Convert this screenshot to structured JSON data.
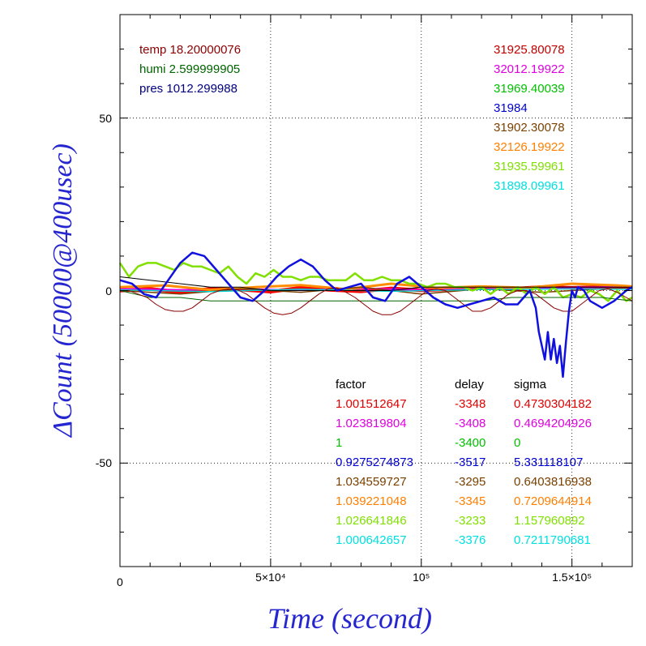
{
  "chart_data": {
    "type": "line",
    "xlabel": "Time (second)",
    "ylabel": "ΔCount (50000@400usec)",
    "xlim": [
      0,
      170000
    ],
    "ylim": [
      -80,
      80
    ],
    "x_ticks": [
      {
        "value": 0,
        "label": "0"
      },
      {
        "value": 50000,
        "label": "5×10⁴"
      },
      {
        "value": 100000,
        "label": "10⁵"
      },
      {
        "value": 150000,
        "label": "1.5×10⁵"
      }
    ],
    "y_ticks": [
      {
        "value": 50,
        "label": "50"
      },
      {
        "value": 0,
        "label": "0"
      },
      {
        "value": -50,
        "label": "-50"
      }
    ],
    "grid": "dotted at major ticks",
    "env_readings": [
      {
        "text": "temp 18.20000076",
        "color": "#8b0000"
      },
      {
        "text": "humi 2.599999905",
        "color": "#006400"
      },
      {
        "text": "pres 1012.299988",
        "color": "#00007f"
      }
    ],
    "channel_means": [
      {
        "text": "31925.80078",
        "color": "#c00000"
      },
      {
        "text": "32012.19922",
        "color": "#e000e0"
      },
      {
        "text": "31969.40039",
        "color": "#00c000"
      },
      {
        "text": "31984",
        "color": "#0000d0"
      },
      {
        "text": "31902.30078",
        "color": "#7a4000"
      },
      {
        "text": "32126.19922",
        "color": "#ff7f00"
      },
      {
        "text": "31935.59961",
        "color": "#80e000"
      },
      {
        "text": "31898.09961",
        "color": "#00e0e0"
      }
    ],
    "table": {
      "headers": [
        "factor",
        "delay",
        "sigma"
      ],
      "rows": [
        {
          "factor": "1.001512647",
          "delay": "-3348",
          "sigma": "0.4730304182",
          "color": "#e00000"
        },
        {
          "factor": "1.023819804",
          "delay": "-3408",
          "sigma": "0.4694204926",
          "color": "#e000e0"
        },
        {
          "factor": "1",
          "delay": "-3400",
          "sigma": "0",
          "color": "#00c000"
        },
        {
          "factor": "0.9275274873",
          "delay": "-3517",
          "sigma": "5.331118107",
          "color": "#0000d0"
        },
        {
          "factor": "1.034559727",
          "delay": "-3295",
          "sigma": "0.6403816938",
          "color": "#7a4000"
        },
        {
          "factor": "1.039221048",
          "delay": "-3345",
          "sigma": "0.7209644914",
          "color": "#ff7f00"
        },
        {
          "factor": "1.026641846",
          "delay": "-3233",
          "sigma": "1.157960892",
          "color": "#80e000"
        },
        {
          "factor": "1.000642657",
          "delay": "-3376",
          "sigma": "0.7211790681",
          "color": "#00e0e0"
        }
      ]
    },
    "series": [
      {
        "color": "#ff0000",
        "width": 4.5,
        "x": [
          0,
          10000,
          20000,
          30000,
          40000,
          50000,
          60000,
          70000,
          80000,
          90000,
          100000,
          110000,
          120000,
          130000,
          140000,
          150000,
          160000,
          170000
        ],
        "y": [
          0,
          0.5,
          -0.5,
          0.5,
          0.3,
          -0.3,
          0.8,
          0.2,
          -0.2,
          0.6,
          0.1,
          0.4,
          0.8,
          0.5,
          1.0,
          0.8,
          1.0,
          1.0
        ]
      },
      {
        "color": "#e000e0",
        "width": 2,
        "x": [
          0,
          20000,
          40000,
          60000,
          80000,
          100000,
          120000,
          140000,
          160000,
          170000
        ],
        "y": [
          0.5,
          0.2,
          0.5,
          0.1,
          0.6,
          0.2,
          0.5,
          0.8,
          1.0,
          1.2
        ]
      },
      {
        "color": "#ff8c00",
        "width": 3,
        "x": [
          0,
          15000,
          30000,
          45000,
          60000,
          75000,
          90000,
          105000,
          120000,
          135000,
          150000,
          165000,
          170000
        ],
        "y": [
          1.0,
          1.5,
          0.2,
          1.0,
          1.6,
          0.4,
          2.0,
          0.8,
          1.2,
          0.8,
          2.0,
          1.5,
          1.2
        ]
      },
      {
        "color": "#7a4000",
        "width": 1.5,
        "x": [
          0,
          20000,
          40000,
          60000,
          80000,
          100000,
          120000,
          140000,
          160000,
          170000
        ],
        "y": [
          0,
          -1.0,
          0.5,
          -0.5,
          1.0,
          -1.0,
          0.5,
          -0.5,
          0.5,
          0.5
        ]
      },
      {
        "color": "#00d0d0",
        "width": 1.5,
        "x": [
          0,
          30000,
          60000,
          90000,
          120000,
          150000,
          170000
        ],
        "y": [
          0.2,
          -0.3,
          0.4,
          -0.2,
          0.3,
          0.5,
          0.4
        ]
      },
      {
        "color": "#80e000",
        "width": 2.5,
        "x": [
          0,
          3000,
          6000,
          9000,
          12000,
          15000,
          18000,
          21000,
          24000,
          27000,
          30000,
          33000,
          36000,
          39000,
          42000,
          45000,
          48000,
          51000,
          54000,
          57000,
          60000,
          63000,
          66000,
          69000,
          72000,
          75000,
          78000,
          81000,
          84000,
          87000,
          90000,
          93000,
          96000,
          99000,
          102000,
          105000,
          108000,
          111000,
          114000,
          117000,
          120000,
          123000,
          126000,
          129000,
          132000,
          135000,
          138000,
          141000,
          144000,
          147000,
          150000,
          153000,
          156000,
          159000,
          162000,
          165000,
          168000,
          170000
        ],
        "y": [
          8,
          4,
          7,
          8,
          8,
          7,
          6,
          8,
          7,
          7,
          6,
          5,
          7,
          4,
          2,
          5,
          4,
          6,
          4,
          4,
          3,
          4,
          4,
          3,
          3,
          3,
          5,
          3,
          3,
          4,
          3,
          3,
          2,
          2,
          1,
          2,
          2,
          1,
          1,
          0,
          1,
          -1,
          1,
          -1,
          1,
          -1,
          1,
          -1,
          1,
          -2,
          -1,
          -2,
          0,
          -1,
          -3,
          0,
          -3,
          -2
        ]
      },
      {
        "color": "#006400",
        "width": 1,
        "x": [
          0,
          5000,
          10000,
          20000,
          30000,
          40000,
          50000,
          60000,
          70000,
          80000,
          90000,
          100000,
          110000,
          120000,
          130000,
          140000,
          150000,
          160000,
          170000
        ],
        "y": [
          0,
          -1,
          -2,
          -2,
          -3,
          -3,
          -3,
          -3,
          -3,
          -3,
          -3,
          -3,
          -3,
          -3,
          -2,
          -2,
          -2,
          -2,
          -3
        ]
      },
      {
        "color": "#000000",
        "width": 1,
        "x": [
          0,
          10000,
          20000,
          30000,
          40000,
          50000,
          60000,
          70000,
          80000,
          90000,
          100000,
          110000,
          120000,
          130000,
          140000,
          150000,
          160000,
          170000
        ],
        "y": [
          4,
          3,
          2,
          1,
          1,
          0,
          0,
          0,
          0,
          0,
          1,
          1,
          1,
          1,
          1,
          1,
          1,
          1
        ]
      },
      {
        "color": "#8b0000",
        "width": 1,
        "x": [
          0,
          3000,
          6000,
          9000,
          12000,
          15000,
          18000,
          21000,
          24000,
          27000,
          30000,
          33000,
          36000,
          39000,
          42000,
          45000,
          48000,
          51000,
          54000,
          57000,
          60000,
          63000,
          66000,
          69000,
          72000,
          75000,
          78000,
          81000,
          84000,
          87000,
          90000,
          93000,
          96000,
          99000,
          102000,
          105000,
          108000,
          111000,
          114000,
          117000,
          120000,
          123000,
          126000,
          129000,
          132000,
          135000,
          138000,
          141000,
          144000,
          147000,
          150000,
          153000,
          156000,
          159000,
          162000,
          165000,
          168000,
          170000
        ],
        "y": [
          0,
          0,
          -1,
          -2,
          -4,
          -5.5,
          -6,
          -6,
          -5,
          -3,
          -1,
          0,
          0.5,
          0.2,
          -1,
          -3,
          -5,
          -6.5,
          -7,
          -6.5,
          -5,
          -3,
          -1,
          0.5,
          0.8,
          -0.5,
          -2,
          -4,
          -6,
          -7,
          -7,
          -6,
          -4,
          -2,
          0,
          0.5,
          0,
          -2,
          -4,
          -6,
          -6,
          -5,
          -3,
          -1,
          0,
          0,
          -1,
          -3,
          -5,
          -6,
          -6,
          -4,
          -2,
          0,
          0.5,
          -0.5,
          -2,
          -3
        ]
      },
      {
        "color": "#1010e0",
        "width": 2.5,
        "x": [
          0,
          4000,
          8000,
          12000,
          16000,
          20000,
          24000,
          28000,
          32000,
          36000,
          40000,
          44000,
          48000,
          52000,
          56000,
          60000,
          64000,
          68000,
          72000,
          76000,
          80000,
          84000,
          88000,
          92000,
          96000,
          100000,
          104000,
          108000,
          112000,
          116000,
          120000,
          124000,
          128000,
          132000,
          136000,
          138000,
          139000,
          140000,
          141000,
          142000,
          143000,
          144000,
          145000,
          146000,
          147000,
          148000,
          149000,
          150000,
          151000,
          152000,
          154000,
          156000,
          160000,
          164000,
          168000,
          170000
        ],
        "y": [
          3,
          2,
          -1,
          -2,
          3,
          8,
          11,
          10,
          6,
          2,
          -2,
          -3,
          0,
          4,
          7,
          9,
          7,
          3,
          0,
          1,
          2,
          -2,
          -3,
          2,
          4,
          1,
          -2,
          -4,
          -5,
          -4,
          -3,
          -2,
          -4,
          -4,
          0,
          -5,
          -12,
          -16,
          -20,
          -12,
          -20,
          -14,
          -21,
          -16,
          -25,
          -15,
          -6,
          0,
          -2,
          1,
          0,
          -3,
          -5,
          -3,
          0,
          1
        ]
      }
    ]
  }
}
